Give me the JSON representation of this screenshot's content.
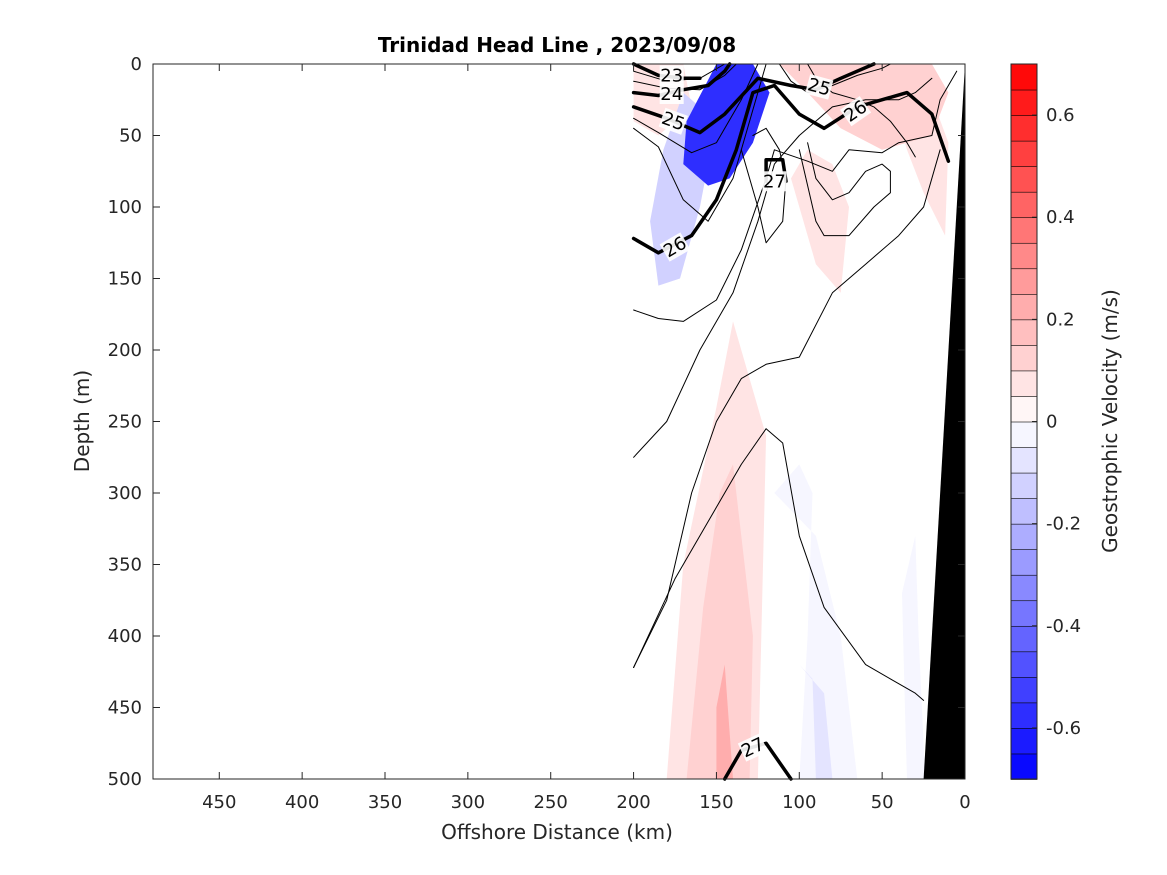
{
  "chart_data": {
    "type": "contour",
    "title": "Trinidad Head Line , 2023/09/08",
    "xlabel": "Offshore Distance (km)",
    "ylabel": "Depth (m)",
    "colorbar_label": "Geostrophic Velocity (m/s)",
    "x_axis": {
      "reversed": true,
      "lim": [
        0,
        490
      ],
      "ticks": [
        450,
        400,
        350,
        300,
        250,
        200,
        150,
        100,
        50,
        0
      ]
    },
    "y_axis": {
      "reversed": true,
      "lim": [
        0,
        500
      ],
      "ticks": [
        0,
        50,
        100,
        150,
        200,
        250,
        300,
        350,
        400,
        450,
        500
      ]
    },
    "colorbar": {
      "lim": [
        -0.7,
        0.7
      ],
      "ticks": [
        0.6,
        0.4,
        0.2,
        0,
        -0.2,
        -0.4,
        -0.6
      ],
      "tick_labels": [
        "0.6",
        "0.4",
        "0.2",
        "0",
        "-0.2",
        "-0.4",
        "-0.6"
      ],
      "levels": 28,
      "negative_color": "#0000ff",
      "positive_color": "#ff0000"
    },
    "velocity_patches": [
      {
        "name": "neg-core-surface",
        "velocity": -0.55,
        "points": [
          [
            150,
            0
          ],
          [
            128,
            0
          ],
          [
            118,
            20
          ],
          [
            128,
            55
          ],
          [
            142,
            80
          ],
          [
            155,
            85
          ],
          [
            170,
            70
          ],
          [
            168,
            40
          ]
        ]
      },
      {
        "name": "neg-core-inner",
        "velocity": -0.4,
        "points": [
          [
            145,
            0
          ],
          [
            133,
            0
          ],
          [
            126,
            22
          ],
          [
            135,
            50
          ],
          [
            147,
            62
          ],
          [
            157,
            52
          ],
          [
            155,
            20
          ]
        ]
      },
      {
        "name": "neg-shallow-wide",
        "velocity": -0.15,
        "points": [
          [
            170,
            20
          ],
          [
            150,
            40
          ],
          [
            160,
            100
          ],
          [
            172,
            150
          ],
          [
            185,
            155
          ],
          [
            190,
            110
          ],
          [
            182,
            60
          ]
        ]
      },
      {
        "name": "neg-deep-ridge",
        "velocity": -0.05,
        "points": [
          [
            115,
            300
          ],
          [
            100,
            280
          ],
          [
            92,
            300
          ],
          [
            95,
            400
          ],
          [
            100,
            500
          ],
          [
            65,
            500
          ],
          [
            75,
            400
          ],
          [
            90,
            330
          ]
        ]
      },
      {
        "name": "neg-deep-core",
        "velocity": -0.1,
        "points": [
          [
            100,
            420
          ],
          [
            92,
            430
          ],
          [
            90,
            500
          ],
          [
            80,
            500
          ],
          [
            85,
            440
          ]
        ]
      },
      {
        "name": "neg-near-shelf",
        "velocity": -0.05,
        "points": [
          [
            30,
            330
          ],
          [
            38,
            370
          ],
          [
            36,
            460
          ],
          [
            35,
            500
          ],
          [
            24,
            500
          ],
          [
            28,
            400
          ]
        ]
      },
      {
        "name": "pos-surface-east",
        "velocity": 0.12,
        "points": [
          [
            112,
            0
          ],
          [
            20,
            0
          ],
          [
            10,
            20
          ],
          [
            20,
            50
          ],
          [
            50,
            60
          ],
          [
            75,
            45
          ],
          [
            95,
            20
          ]
        ]
      },
      {
        "name": "pos-surface-west",
        "velocity": 0.08,
        "points": [
          [
            200,
            0
          ],
          [
            170,
            0
          ],
          [
            165,
            30
          ],
          [
            185,
            50
          ],
          [
            200,
            40
          ]
        ]
      },
      {
        "name": "pos-mid-column",
        "velocity": 0.05,
        "points": [
          [
            105,
            80
          ],
          [
            90,
            140
          ],
          [
            75,
            160
          ],
          [
            70,
            100
          ],
          [
            80,
            70
          ],
          [
            95,
            60
          ]
        ]
      },
      {
        "name": "pos-deep-tongue",
        "velocity": 0.06,
        "points": [
          [
            140,
            180
          ],
          [
            120,
            260
          ],
          [
            125,
            500
          ],
          [
            180,
            500
          ],
          [
            170,
            350
          ],
          [
            150,
            240
          ]
        ]
      },
      {
        "name": "pos-deep-core",
        "velocity": 0.12,
        "points": [
          [
            140,
            280
          ],
          [
            128,
            400
          ],
          [
            130,
            500
          ],
          [
            168,
            500
          ],
          [
            158,
            380
          ],
          [
            148,
            300
          ]
        ]
      },
      {
        "name": "pos-deep-strong",
        "velocity": 0.2,
        "points": [
          [
            145,
            420
          ],
          [
            140,
            500
          ],
          [
            150,
            500
          ],
          [
            150,
            450
          ]
        ]
      },
      {
        "name": "pos-upper-shelf",
        "velocity": 0.07,
        "points": [
          [
            40,
            40
          ],
          [
            18,
            30
          ],
          [
            10,
            55
          ],
          [
            12,
            120
          ],
          [
            25,
            90
          ],
          [
            35,
            60
          ]
        ]
      }
    ],
    "density_contours": [
      {
        "level": 23,
        "bold": true,
        "points": [
          [
            200,
            0
          ],
          [
            185,
            8
          ],
          [
            170,
            10
          ],
          [
            160,
            10
          ]
        ]
      },
      {
        "level": 24,
        "bold": true,
        "points": [
          [
            200,
            20
          ],
          [
            185,
            22
          ],
          [
            170,
            18
          ],
          [
            155,
            15
          ],
          [
            145,
            5
          ],
          [
            142,
            0
          ]
        ]
      },
      {
        "level": 25,
        "bold": true,
        "points": [
          [
            200,
            30
          ],
          [
            180,
            38
          ],
          [
            160,
            48
          ],
          [
            145,
            35
          ],
          [
            125,
            10
          ],
          [
            105,
            15
          ],
          [
            90,
            18
          ],
          [
            75,
            10
          ],
          [
            55,
            0
          ]
        ]
      },
      {
        "level": 26,
        "bold": true,
        "points": [
          [
            200,
            122
          ],
          [
            185,
            132
          ],
          [
            165,
            120
          ],
          [
            150,
            95
          ],
          [
            138,
            60
          ],
          [
            128,
            20
          ],
          [
            115,
            15
          ],
          [
            100,
            35
          ],
          [
            85,
            45
          ],
          [
            65,
            30
          ],
          [
            35,
            20
          ],
          [
            20,
            35
          ],
          [
            10,
            68
          ]
        ]
      },
      {
        "level": 27,
        "bold": true,
        "points": [
          [
            120,
            82
          ],
          [
            120,
            67
          ],
          [
            110,
            67
          ],
          [
            108,
            82
          ]
        ]
      },
      {
        "level": 27,
        "bold": true,
        "points": [
          [
            145,
            500
          ],
          [
            135,
            480
          ],
          [
            120,
            475
          ],
          [
            105,
            500
          ]
        ]
      },
      {
        "level": null,
        "bold": false,
        "points": [
          [
            200,
            5
          ],
          [
            180,
            12
          ],
          [
            160,
            10
          ],
          [
            145,
            0
          ]
        ]
      },
      {
        "level": null,
        "bold": false,
        "points": [
          [
            200,
            12
          ],
          [
            180,
            17
          ],
          [
            160,
            18
          ],
          [
            145,
            8
          ],
          [
            138,
            0
          ]
        ]
      },
      {
        "level": null,
        "bold": false,
        "points": [
          [
            200,
            38
          ],
          [
            185,
            48
          ],
          [
            165,
            62
          ],
          [
            150,
            55
          ],
          [
            135,
            25
          ],
          [
            125,
            0
          ]
        ]
      },
      {
        "level": null,
        "bold": false,
        "points": [
          [
            200,
            45
          ],
          [
            185,
            58
          ],
          [
            170,
            95
          ],
          [
            155,
            110
          ],
          [
            140,
            80
          ],
          [
            130,
            40
          ],
          [
            120,
            0
          ]
        ]
      },
      {
        "level": null,
        "bold": false,
        "points": [
          [
            200,
            172
          ],
          [
            185,
            178
          ],
          [
            170,
            180
          ],
          [
            150,
            165
          ],
          [
            135,
            130
          ],
          [
            120,
            80
          ],
          [
            115,
            60
          ],
          [
            95,
            68
          ],
          [
            80,
            75
          ],
          [
            70,
            60
          ],
          [
            50,
            62
          ],
          [
            40,
            55
          ],
          [
            20,
            50
          ],
          [
            15,
            25
          ],
          [
            5,
            5
          ]
        ]
      },
      {
        "level": null,
        "bold": false,
        "points": [
          [
            200,
            275
          ],
          [
            180,
            250
          ],
          [
            160,
            200
          ],
          [
            140,
            160
          ],
          [
            125,
            110
          ],
          [
            115,
            70
          ],
          [
            100,
            50
          ],
          [
            80,
            30
          ],
          [
            60,
            25
          ],
          [
            40,
            25
          ],
          [
            30,
            20
          ],
          [
            20,
            10
          ]
        ]
      },
      {
        "level": null,
        "bold": false,
        "points": [
          [
            200,
            422
          ],
          [
            180,
            375
          ],
          [
            165,
            300
          ],
          [
            150,
            250
          ],
          [
            135,
            220
          ],
          [
            120,
            210
          ],
          [
            100,
            205
          ],
          [
            80,
            160
          ],
          [
            60,
            140
          ],
          [
            40,
            120
          ],
          [
            25,
            100
          ],
          [
            15,
            60
          ]
        ]
      },
      {
        "level": null,
        "bold": false,
        "points": [
          [
            200,
            422
          ],
          [
            175,
            360
          ],
          [
            150,
            310
          ],
          [
            135,
            280
          ],
          [
            120,
            255
          ],
          [
            110,
            265
          ],
          [
            100,
            330
          ],
          [
            85,
            380
          ],
          [
            60,
            420
          ],
          [
            45,
            430
          ],
          [
            30,
            440
          ],
          [
            25,
            445
          ]
        ]
      },
      {
        "level": null,
        "bold": false,
        "points": [
          [
            112,
            0
          ],
          [
            105,
            12
          ],
          [
            95,
            20
          ],
          [
            80,
            15
          ],
          [
            65,
            8
          ],
          [
            50,
            3
          ],
          [
            45,
            0
          ]
        ]
      },
      {
        "level": null,
        "bold": false,
        "points": [
          [
            95,
            0
          ],
          [
            90,
            10
          ],
          [
            80,
            20
          ],
          [
            65,
            25
          ],
          [
            55,
            30
          ],
          [
            45,
            40
          ],
          [
            35,
            55
          ],
          [
            30,
            65
          ]
        ]
      },
      {
        "level": null,
        "bold": false,
        "points": [
          [
            135,
            60
          ],
          [
            125,
            100
          ],
          [
            120,
            125
          ],
          [
            110,
            110
          ],
          [
            108,
            80
          ],
          [
            112,
            60
          ],
          [
            120,
            45
          ],
          [
            128,
            50
          ]
        ]
      },
      {
        "level": null,
        "bold": false,
        "points": [
          [
            100,
            60
          ],
          [
            90,
            110
          ],
          [
            85,
            120
          ],
          [
            70,
            120
          ],
          [
            55,
            100
          ],
          [
            45,
            90
          ],
          [
            45,
            75
          ],
          [
            50,
            70
          ],
          [
            60,
            75
          ],
          [
            70,
            90
          ],
          [
            80,
            95
          ],
          [
            90,
            80
          ],
          [
            95,
            55
          ]
        ]
      }
    ],
    "contour_labels": [
      {
        "text": "23",
        "x": 177,
        "y": 8,
        "angle": 0
      },
      {
        "text": "24",
        "x": 177,
        "y": 21,
        "angle": 0
      },
      {
        "text": "25",
        "x": 176,
        "y": 40,
        "angle": 20
      },
      {
        "text": "25",
        "x": 88,
        "y": 16,
        "angle": 15
      },
      {
        "text": "26",
        "x": 66,
        "y": 33,
        "angle": -35
      },
      {
        "text": "26",
        "x": 175,
        "y": 128,
        "angle": -30
      },
      {
        "text": "27",
        "x": 115,
        "y": 82,
        "angle": 0
      },
      {
        "text": "27",
        "x": 128,
        "y": 478,
        "angle": -25
      }
    ],
    "seafloor": {
      "points": [
        [
          0,
          0
        ],
        [
          25,
          500
        ],
        [
          0,
          500
        ]
      ]
    }
  }
}
